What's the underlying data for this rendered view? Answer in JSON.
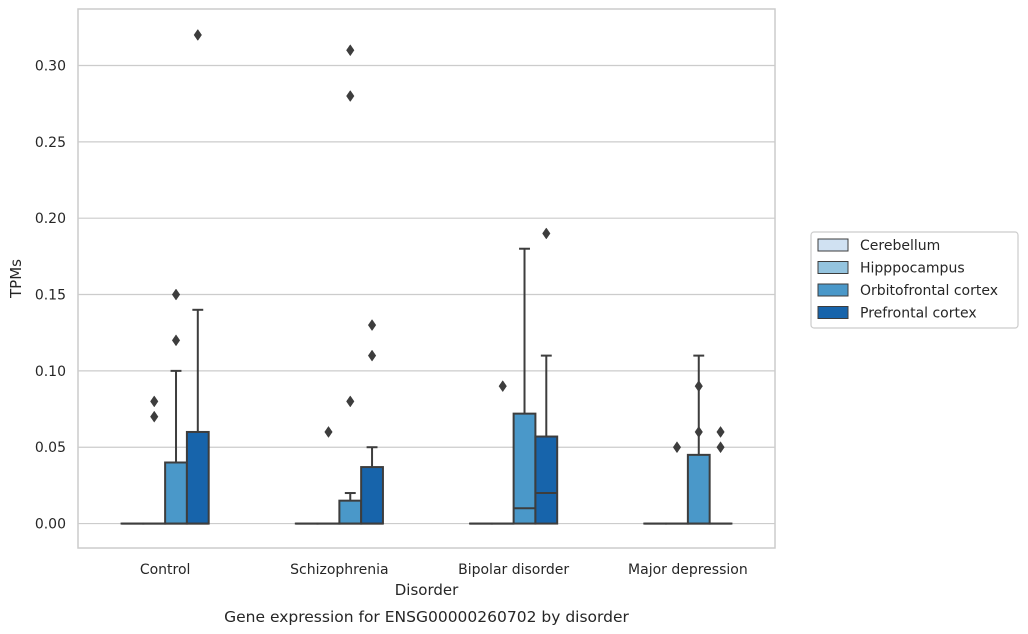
{
  "chart_data": {
    "type": "box",
    "caption": "Gene expression for ENSG00000260702 by disorder",
    "xlabel": "Disorder",
    "ylabel": "TPMs",
    "ylim": [
      -0.016,
      0.337
    ],
    "yticks": [
      0.0,
      0.05,
      0.1,
      0.15,
      0.2,
      0.25,
      0.3
    ],
    "ytick_labels": [
      "0.00",
      "0.05",
      "0.10",
      "0.15",
      "0.20",
      "0.25",
      "0.30"
    ],
    "grid": true,
    "legend_position": "right",
    "categories": [
      "Control",
      "Schizophrenia",
      "Bipolar disorder",
      "Major depression"
    ],
    "series": [
      {
        "name": "Cerebellum",
        "color": "#d0e1f2",
        "boxes": [
          {
            "q1": 0,
            "median": 0,
            "q3": 0,
            "whislo": 0,
            "whishi": 0,
            "fliers": []
          },
          {
            "q1": 0,
            "median": 0,
            "q3": 0,
            "whislo": 0,
            "whishi": 0,
            "fliers": []
          },
          {
            "q1": 0,
            "median": 0,
            "q3": 0,
            "whislo": 0,
            "whishi": 0,
            "fliers": []
          },
          {
            "q1": 0,
            "median": 0,
            "q3": 0,
            "whislo": 0,
            "whishi": 0,
            "fliers": []
          }
        ]
      },
      {
        "name": "Hipppocampus",
        "color": "#94c4df",
        "boxes": [
          {
            "q1": 0,
            "median": 0,
            "q3": 0,
            "whislo": 0,
            "whishi": 0,
            "fliers": [
              0.07,
              0.08
            ]
          },
          {
            "q1": 0,
            "median": 0,
            "q3": 0,
            "whislo": 0,
            "whishi": 0,
            "fliers": [
              0.06
            ]
          },
          {
            "q1": 0,
            "median": 0,
            "q3": 0,
            "whislo": 0,
            "whishi": 0,
            "fliers": [
              0.09
            ]
          },
          {
            "q1": 0,
            "median": 0,
            "q3": 0,
            "whislo": 0,
            "whishi": 0,
            "fliers": [
              0.05
            ]
          }
        ]
      },
      {
        "name": "Orbitofrontal cortex",
        "color": "#4a98c9",
        "boxes": [
          {
            "q1": 0,
            "median": 0,
            "q3": 0.04,
            "whislo": 0,
            "whishi": 0.1,
            "fliers": [
              0.12,
              0.15
            ]
          },
          {
            "q1": 0,
            "median": 0,
            "q3": 0.015,
            "whislo": 0,
            "whishi": 0.02,
            "fliers": [
              0.08,
              0.28,
              0.31
            ]
          },
          {
            "q1": 0,
            "median": 0.01,
            "q3": 0.072,
            "whislo": 0,
            "whishi": 0.18,
            "fliers": []
          },
          {
            "q1": 0,
            "median": 0,
            "q3": 0.045,
            "whislo": 0,
            "whishi": 0.11,
            "fliers": [
              0.06,
              0.09
            ]
          }
        ]
      },
      {
        "name": "Prefrontal cortex",
        "color": "#1764ab",
        "boxes": [
          {
            "q1": 0,
            "median": 0,
            "q3": 0.06,
            "whislo": 0,
            "whishi": 0.14,
            "fliers": [
              0.32
            ]
          },
          {
            "q1": 0,
            "median": 0,
            "q3": 0.037,
            "whislo": 0,
            "whishi": 0.05,
            "fliers": [
              0.11,
              0.13
            ]
          },
          {
            "q1": 0,
            "median": 0.02,
            "q3": 0.057,
            "whislo": 0,
            "whishi": 0.11,
            "fliers": [
              0.19
            ]
          },
          {
            "q1": 0,
            "median": 0,
            "q3": 0,
            "whislo": 0,
            "whishi": 0,
            "fliers": [
              0.05,
              0.06
            ]
          }
        ]
      }
    ]
  }
}
